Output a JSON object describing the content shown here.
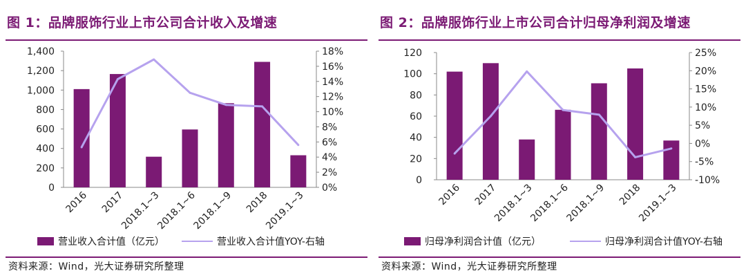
{
  "chart_data": [
    {
      "type": "bar",
      "title": "图 1：品牌服饰行业上市公司合计收入及增速",
      "categories": [
        "2016",
        "2017",
        "2018.1~3",
        "2018.1~6",
        "2018.1~9",
        "2018",
        "2019.1~3"
      ],
      "series": [
        {
          "name": "营业收入合计值（亿元）",
          "type": "bar",
          "axis": "left",
          "values": [
            1010,
            1165,
            315,
            595,
            865,
            1290,
            330
          ],
          "color": "#7b1a74"
        },
        {
          "name": "营业收入合计值YOY-右轴",
          "type": "line",
          "axis": "right",
          "values": [
            5.3,
            14.3,
            16.9,
            12.5,
            10.9,
            10.7,
            5.6
          ],
          "color": "#b6a2ee"
        }
      ],
      "left_axis": {
        "ylim": [
          0,
          1400
        ],
        "ticks": [
          "0",
          "200",
          "400",
          "600",
          "800",
          "1,000",
          "1,200",
          "1,400"
        ]
      },
      "right_axis": {
        "ylim": [
          0,
          18
        ],
        "ticks": [
          "0%",
          "2%",
          "4%",
          "6%",
          "8%",
          "10%",
          "12%",
          "14%",
          "16%",
          "18%"
        ]
      },
      "grid": false,
      "legend_position": "bottom",
      "source": "资料来源：Wind，光大证券研究所整理"
    },
    {
      "type": "bar",
      "title": "图 2：品牌服饰行业上市公司合计归母净利润及增速",
      "categories": [
        "2016",
        "2017",
        "2018.1~3",
        "2018.1~6",
        "2018.1~9",
        "2018",
        "2019.1~3"
      ],
      "series": [
        {
          "name": "归母净利润合计值（亿元）",
          "type": "bar",
          "axis": "left",
          "values": [
            102,
            110,
            38,
            66,
            91,
            105,
            37
          ],
          "color": "#7b1a74"
        },
        {
          "name": "归母净利润合计值YOY-右轴",
          "type": "line",
          "axis": "right",
          "values": [
            -2.8,
            7.5,
            19.8,
            9.2,
            7.9,
            -3.8,
            -1.4
          ],
          "color": "#b6a2ee"
        }
      ],
      "left_axis": {
        "ylim": [
          0,
          120
        ],
        "ticks": [
          "0",
          "20",
          "40",
          "60",
          "80",
          "100",
          "120"
        ]
      },
      "right_axis": {
        "ylim": [
          -10,
          25
        ],
        "ticks": [
          "-10%",
          "-5%",
          "0%",
          "5%",
          "10%",
          "15%",
          "20%",
          "25%"
        ]
      },
      "grid": false,
      "legend_position": "bottom",
      "source": "资料来源：Wind，光大证券研究所整理"
    }
  ]
}
